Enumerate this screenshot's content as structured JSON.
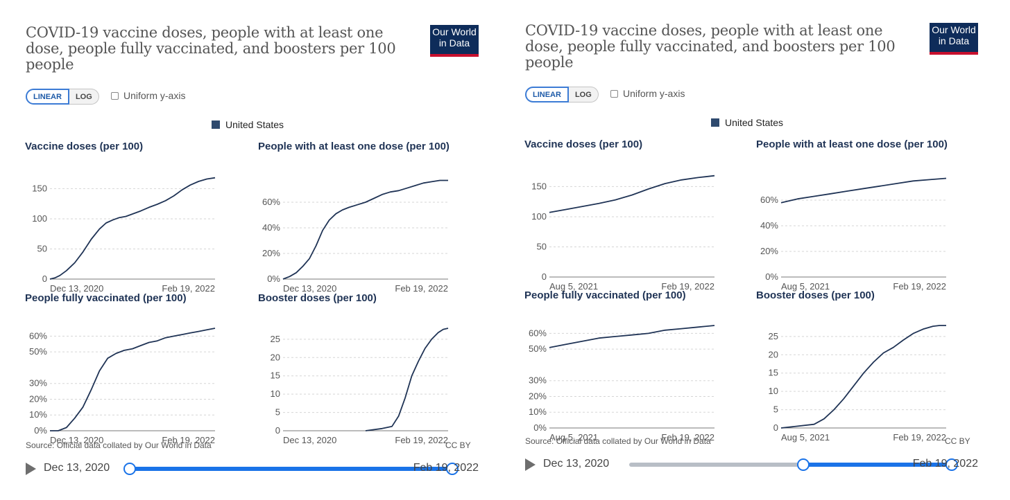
{
  "title": "COVID-19 vaccine doses, people with at least one dose, people fully vaccinated, and boosters per 100 people",
  "logo": {
    "line1": "Our World",
    "line2": "in Data"
  },
  "toggle": {
    "linear": "LINEAR",
    "log": "LOG"
  },
  "uniform_label": "Uniform y-axis",
  "legend_label": "United States",
  "source": "Source: Official data collated by Our World in Data",
  "license": "CC BY",
  "timeline": {
    "start": "Dec 13, 2020",
    "end": "Feb 19, 2022"
  },
  "colors": {
    "line": "#1f3355",
    "accent": "#1a73e8",
    "logo_bg": "#0e2c5a",
    "logo_stripe": "#c8102e"
  },
  "icons": {
    "play": "play-icon",
    "checkbox": "checkbox-icon"
  },
  "panels": [
    {
      "id": "left",
      "range_start": "Dec 13, 2020",
      "range_end": "Feb 19, 2022",
      "selection": [
        0,
        1
      ]
    },
    {
      "id": "right",
      "range_start": "Aug 5, 2021",
      "range_end": "Feb 19, 2022",
      "selection": [
        0.54,
        1
      ]
    }
  ],
  "chart_data": [
    {
      "panel": "left",
      "type": "line",
      "title": "Vaccine doses (per 100)",
      "series_name": "United States",
      "x_range": [
        "Dec 13, 2020",
        "Feb 19, 2022"
      ],
      "ylim": [
        0,
        170
      ],
      "yticks": [
        0,
        50,
        100,
        150
      ],
      "ytick_labels": [
        "0",
        "50",
        "100",
        "150"
      ],
      "grid": true,
      "x": [
        0,
        0.03,
        0.06,
        0.1,
        0.15,
        0.2,
        0.25,
        0.3,
        0.34,
        0.38,
        0.42,
        0.46,
        0.5,
        0.55,
        0.6,
        0.65,
        0.7,
        0.75,
        0.8,
        0.85,
        0.9,
        0.95,
        1
      ],
      "y": [
        0,
        2,
        6,
        14,
        27,
        45,
        66,
        83,
        93,
        98,
        102,
        104,
        108,
        113,
        119,
        124,
        130,
        138,
        148,
        156,
        162,
        166,
        168
      ]
    },
    {
      "panel": "left",
      "type": "line",
      "title": "People with at least one dose (per 100)",
      "series_name": "United States",
      "x_range": [
        "Dec 13, 2020",
        "Feb 19, 2022"
      ],
      "ylim": [
        0,
        80
      ],
      "yticks": [
        0,
        20,
        40,
        60
      ],
      "ytick_labels": [
        "0%",
        "20%",
        "40%",
        "60%"
      ],
      "grid": true,
      "x": [
        0,
        0.04,
        0.08,
        0.12,
        0.16,
        0.2,
        0.24,
        0.28,
        0.32,
        0.36,
        0.4,
        0.45,
        0.5,
        0.55,
        0.6,
        0.65,
        0.7,
        0.75,
        0.8,
        0.85,
        0.9,
        0.95,
        1
      ],
      "y": [
        0,
        2,
        5,
        10,
        16,
        26,
        38,
        46,
        51,
        54,
        56,
        58,
        60,
        63,
        66,
        68,
        69,
        71,
        73,
        75,
        76,
        77,
        77
      ]
    },
    {
      "panel": "left",
      "type": "line",
      "title": "People fully vaccinated (per 100)",
      "series_name": "United States",
      "x_range": [
        "Dec 13, 2020",
        "Feb 19, 2022"
      ],
      "ylim": [
        0,
        65
      ],
      "yticks": [
        0,
        10,
        20,
        30,
        50,
        60
      ],
      "ytick_labels": [
        "0%",
        "10%",
        "20%",
        "30%",
        "50%",
        "60%"
      ],
      "grid": true,
      "x": [
        0,
        0.05,
        0.1,
        0.15,
        0.2,
        0.25,
        0.3,
        0.35,
        0.4,
        0.45,
        0.5,
        0.55,
        0.6,
        0.65,
        0.7,
        0.75,
        0.8,
        0.85,
        0.9,
        0.95,
        1
      ],
      "y": [
        0,
        0,
        2,
        8,
        15,
        26,
        38,
        46,
        49,
        51,
        52,
        54,
        56,
        57,
        59,
        60,
        61,
        62,
        63,
        64,
        65
      ]
    },
    {
      "panel": "left",
      "type": "line",
      "title": "Booster doses (per 100)",
      "series_name": "United States",
      "x_range": [
        "Dec 13, 2020",
        "Feb 19, 2022"
      ],
      "ylim": [
        0,
        28
      ],
      "yticks": [
        0,
        5,
        10,
        15,
        20,
        25
      ],
      "ytick_labels": [
        "0",
        "5",
        "10",
        "15",
        "20",
        "25"
      ],
      "grid": true,
      "x": [
        0.5,
        0.6,
        0.66,
        0.7,
        0.74,
        0.78,
        0.82,
        0.86,
        0.9,
        0.94,
        0.97,
        1
      ],
      "y": [
        0,
        0.6,
        1.2,
        4,
        9,
        15,
        19,
        22.5,
        25,
        26.8,
        27.7,
        28
      ]
    },
    {
      "panel": "right",
      "type": "line",
      "title": "Vaccine doses (per 100)",
      "series_name": "United States",
      "x_range": [
        "Aug 5, 2021",
        "Feb 19, 2022"
      ],
      "ylim": [
        0,
        170
      ],
      "yticks": [
        0,
        50,
        100,
        150
      ],
      "ytick_labels": [
        "0",
        "50",
        "100",
        "150"
      ],
      "grid": true,
      "x": [
        0,
        0.1,
        0.2,
        0.3,
        0.4,
        0.5,
        0.6,
        0.7,
        0.8,
        0.9,
        1
      ],
      "y": [
        107,
        112,
        117,
        122,
        128,
        136,
        146,
        155,
        161,
        165,
        168
      ]
    },
    {
      "panel": "right",
      "type": "line",
      "title": "People with at least one dose (per 100)",
      "series_name": "United States",
      "x_range": [
        "Aug 5, 2021",
        "Feb 19, 2022"
      ],
      "ylim": [
        0,
        80
      ],
      "yticks": [
        0,
        20,
        40,
        60
      ],
      "ytick_labels": [
        "0%",
        "20%",
        "40%",
        "60%"
      ],
      "grid": true,
      "x": [
        0,
        0.1,
        0.2,
        0.3,
        0.4,
        0.5,
        0.6,
        0.7,
        0.8,
        0.9,
        1
      ],
      "y": [
        58,
        61,
        63,
        65,
        67,
        69,
        71,
        73,
        75,
        76,
        77
      ]
    },
    {
      "panel": "right",
      "type": "line",
      "title": "People fully vaccinated (per 100)",
      "series_name": "United States",
      "x_range": [
        "Aug 5, 2021",
        "Feb 19, 2022"
      ],
      "ylim": [
        0,
        65
      ],
      "yticks": [
        0,
        10,
        20,
        30,
        50,
        60
      ],
      "ytick_labels": [
        "0%",
        "10%",
        "20%",
        "30%",
        "50%",
        "60%"
      ],
      "grid": true,
      "x": [
        0,
        0.1,
        0.2,
        0.3,
        0.4,
        0.5,
        0.6,
        0.7,
        0.8,
        0.9,
        1
      ],
      "y": [
        51,
        53,
        55,
        57,
        58,
        59,
        60,
        62,
        63,
        64,
        65
      ]
    },
    {
      "panel": "right",
      "type": "line",
      "title": "Booster doses (per 100)",
      "series_name": "United States",
      "x_range": [
        "Aug 5, 2021",
        "Feb 19, 2022"
      ],
      "ylim": [
        0,
        28
      ],
      "yticks": [
        0,
        5,
        10,
        15,
        20,
        25
      ],
      "ytick_labels": [
        "0",
        "5",
        "10",
        "15",
        "20",
        "25"
      ],
      "grid": true,
      "x": [
        0,
        0.1,
        0.2,
        0.26,
        0.32,
        0.38,
        0.44,
        0.5,
        0.56,
        0.62,
        0.68,
        0.74,
        0.8,
        0.86,
        0.92,
        0.96,
        1
      ],
      "y": [
        0,
        0.5,
        1,
        2.5,
        5,
        8,
        11.5,
        15,
        18,
        20.5,
        22,
        24,
        25.8,
        27,
        27.8,
        28,
        28
      ]
    }
  ]
}
